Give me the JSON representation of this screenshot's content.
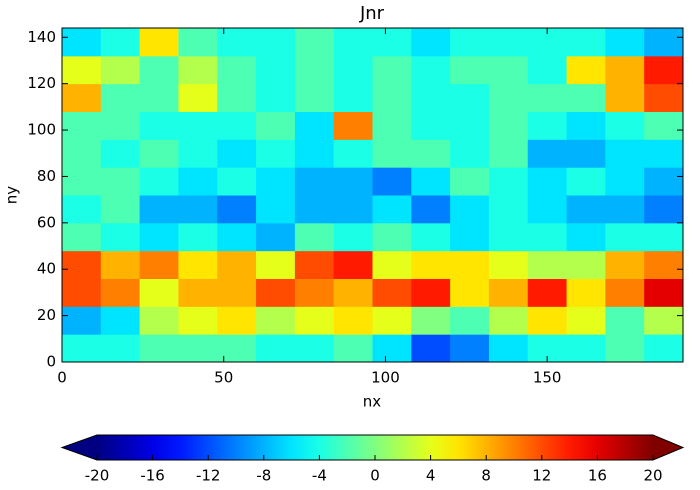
{
  "chart_data": {
    "type": "heatmap",
    "title": "Jnr",
    "xlabel": "nx",
    "ylabel": "ny",
    "colormap": "jet",
    "xlim": [
      0,
      192
    ],
    "ylim": [
      0,
      144
    ],
    "xticks": [
      0,
      50,
      100,
      150
    ],
    "yticks": [
      0,
      20,
      40,
      60,
      80,
      100,
      120,
      140
    ],
    "z": [
      [
        -4,
        -4,
        -2,
        -2,
        -2,
        -4,
        -4,
        -2,
        -6,
        -12,
        -10,
        -6,
        -4,
        -4,
        -2,
        -4
      ],
      [
        -8,
        -6,
        2,
        4,
        6,
        2,
        4,
        6,
        4,
        0,
        -2,
        2,
        6,
        4,
        -2,
        2
      ],
      [
        12,
        10,
        4,
        8,
        8,
        12,
        10,
        8,
        12,
        14,
        6,
        8,
        14,
        6,
        10,
        16
      ],
      [
        12,
        8,
        10,
        6,
        8,
        4,
        12,
        14,
        4,
        6,
        6,
        4,
        2,
        2,
        8,
        10
      ],
      [
        -2,
        -4,
        -6,
        -4,
        -6,
        -8,
        -2,
        -4,
        -2,
        -4,
        -6,
        -4,
        -4,
        -6,
        -4,
        -4
      ],
      [
        -4,
        -2,
        -8,
        -8,
        -10,
        -6,
        -8,
        -8,
        -6,
        -10,
        -6,
        -4,
        -6,
        -8,
        -8,
        -10
      ],
      [
        -2,
        -2,
        -4,
        -6,
        -4,
        -6,
        -8,
        -8,
        -10,
        -6,
        -2,
        -4,
        -6,
        -4,
        -6,
        -8
      ],
      [
        -2,
        -4,
        -2,
        -4,
        -6,
        -4,
        -6,
        -4,
        -2,
        -2,
        -4,
        -2,
        -8,
        -8,
        -6,
        -6
      ],
      [
        -2,
        -2,
        -4,
        -4,
        -4,
        -2,
        -6,
        10,
        -2,
        -4,
        -4,
        -2,
        -4,
        -6,
        -4,
        -2
      ],
      [
        8,
        -2,
        -2,
        4,
        -2,
        -4,
        -2,
        -4,
        -2,
        -4,
        -4,
        -2,
        -2,
        -2,
        8,
        12
      ],
      [
        4,
        2,
        -2,
        2,
        -2,
        -4,
        -2,
        -4,
        -2,
        -4,
        -2,
        -2,
        -4,
        6,
        8,
        14
      ],
      [
        -6,
        -4,
        6,
        -2,
        -4,
        -4,
        -2,
        -4,
        -4,
        -6,
        -4,
        -4,
        -4,
        -4,
        -6,
        -8
      ]
    ],
    "colorbar": {
      "clim": [
        -20,
        20
      ],
      "ticks": [
        -20,
        -16,
        -12,
        -8,
        -4,
        0,
        4,
        8,
        12,
        16,
        20
      ]
    }
  }
}
